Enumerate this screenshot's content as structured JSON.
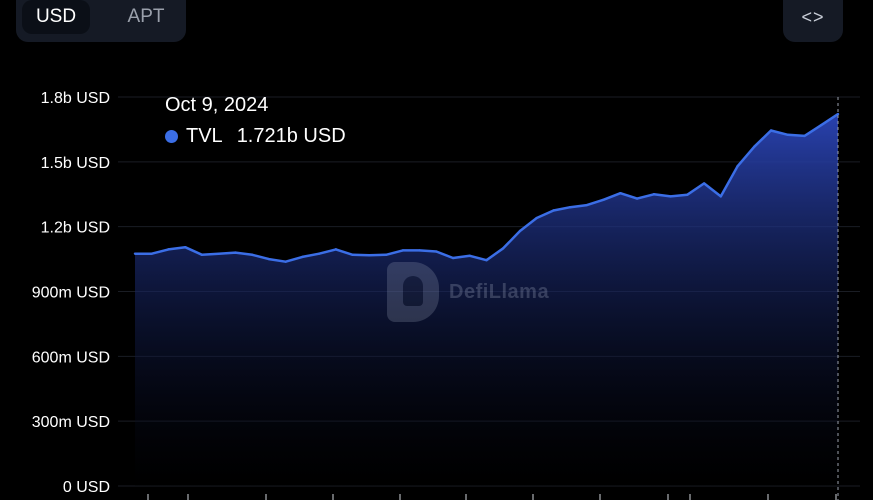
{
  "toggles": {
    "usd_label": "USD",
    "apt_label": "APT"
  },
  "embed": {
    "label": "<>"
  },
  "watermark": {
    "text": "DefiLlama"
  },
  "tooltip": {
    "date": "Oct 9, 2024",
    "series": "TVL",
    "value": "1.721b USD",
    "dot_color": "#3b6ee6"
  },
  "colors": {
    "line": "#3b6ee6",
    "fill_top": "#2b45b8",
    "fill_bottom": "#000000",
    "grid": "#1a1d24"
  },
  "chart_data": {
    "type": "area",
    "title": "",
    "xlabel": "",
    "ylabel": "",
    "grid": true,
    "ylim": [
      0,
      1800000000
    ],
    "y_ticks": [
      {
        "value": 0,
        "label": "0 USD"
      },
      {
        "value": 300000000,
        "label": "300m USD"
      },
      {
        "value": 600000000,
        "label": "600m USD"
      },
      {
        "value": 900000000,
        "label": "900m USD"
      },
      {
        "value": 1200000000,
        "label": "1.2b USD"
      },
      {
        "value": 1500000000,
        "label": "1.5b USD"
      },
      {
        "value": 1800000000,
        "label": "1.8b USD"
      }
    ],
    "series": [
      {
        "name": "TVL",
        "values": [
          1.075,
          1.075,
          1.095,
          1.105,
          1.07,
          1.075,
          1.08,
          1.07,
          1.05,
          1.038,
          1.06,
          1.075,
          1.095,
          1.07,
          1.068,
          1.07,
          1.09,
          1.09,
          1.085,
          1.055,
          1.065,
          1.045,
          1.1,
          1.18,
          1.24,
          1.275,
          1.29,
          1.3,
          1.325,
          1.355,
          1.33,
          1.35,
          1.34,
          1.348,
          1.4,
          1.34,
          1.48,
          1.57,
          1.645,
          1.625,
          1.62,
          1.67,
          1.721
        ],
        "unit": "billion USD"
      }
    ]
  }
}
